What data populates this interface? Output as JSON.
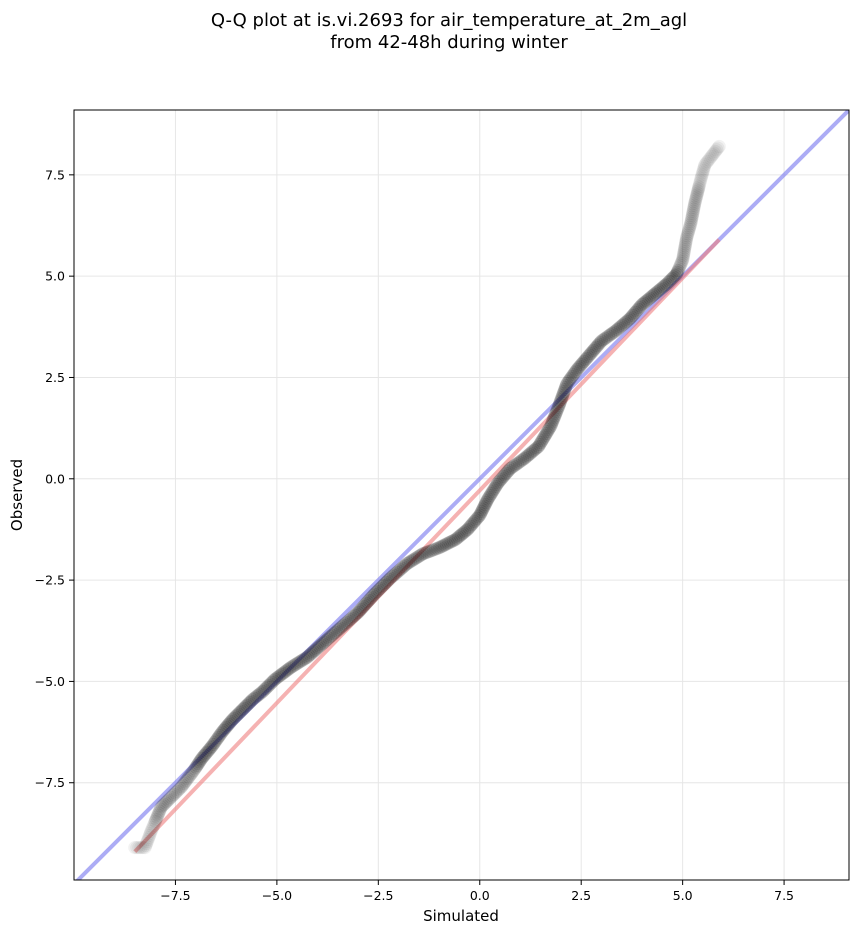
{
  "chart_data": {
    "type": "scatter",
    "title": [
      "Q-Q plot at is.vi.2693 for air_temperature_at_2m_agl",
      "from 42-48h during winter"
    ],
    "xlabel": "Simulated",
    "ylabel": "Observed",
    "xlim": [
      -10.0,
      9.1
    ],
    "ylim": [
      -9.9,
      9.1
    ],
    "grid": true,
    "x_ticks": [
      -7.5,
      -5.0,
      -2.5,
      0.0,
      2.5,
      5.0,
      7.5
    ],
    "y_ticks": [
      -7.5,
      -5.0,
      -2.5,
      0.0,
      2.5,
      5.0,
      7.5
    ],
    "x_tick_labels": [
      "−7.5",
      "−5.0",
      "−2.5",
      "0.0",
      "2.5",
      "5.0",
      "7.5"
    ],
    "y_tick_labels": [
      "−7.5",
      "−5.0",
      "−2.5",
      "0.0",
      "2.5",
      "5.0",
      "7.5"
    ],
    "colors": {
      "points": "#000000",
      "identity_line": "#8080f0",
      "fit_line": "#f08080"
    },
    "identity_line": {
      "x": [
        -10.0,
        9.1
      ],
      "y": [
        -10.0,
        9.1
      ]
    },
    "fit_line": {
      "x": [
        -8.5,
        5.9
      ],
      "y": [
        -9.2,
        5.9
      ]
    },
    "quantile_curve": {
      "x": [
        -8.5,
        -8.25,
        -8.1,
        -7.85,
        -7.65,
        -7.35,
        -7.05,
        -6.85,
        -6.6,
        -6.35,
        -6.1,
        -5.85,
        -5.6,
        -5.35,
        -5.05,
        -4.65,
        -4.25,
        -3.8,
        -3.4,
        -3.0,
        -2.6,
        -2.2,
        -1.8,
        -1.4,
        -1.0,
        -0.6,
        -0.3,
        0.0,
        0.2,
        0.45,
        0.75,
        1.1,
        1.45,
        1.75,
        1.95,
        2.15,
        2.4,
        2.7,
        3.0,
        3.35,
        3.7,
        4.0,
        4.3,
        4.6,
        4.85,
        5.0,
        5.1,
        5.2,
        5.3,
        5.45,
        5.55,
        5.9
      ],
      "y": [
        -9.1,
        -9.1,
        -8.7,
        -8.1,
        -7.9,
        -7.6,
        -7.2,
        -6.9,
        -6.6,
        -6.25,
        -5.95,
        -5.7,
        -5.45,
        -5.25,
        -4.95,
        -4.65,
        -4.4,
        -4.0,
        -3.65,
        -3.3,
        -2.85,
        -2.45,
        -2.1,
        -1.85,
        -1.7,
        -1.5,
        -1.25,
        -0.9,
        -0.5,
        -0.1,
        0.25,
        0.5,
        0.8,
        1.3,
        1.8,
        2.35,
        2.7,
        3.05,
        3.4,
        3.65,
        3.95,
        4.3,
        4.55,
        4.8,
        5.05,
        5.4,
        5.95,
        6.3,
        6.8,
        7.4,
        7.75,
        8.2
      ]
    }
  }
}
